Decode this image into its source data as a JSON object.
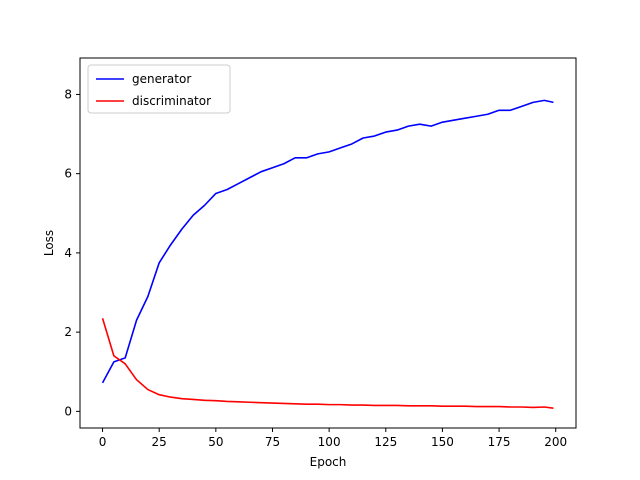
{
  "chart_data": {
    "type": "line",
    "title": "",
    "xlabel": "Epoch",
    "ylabel": "Loss",
    "xlim": [
      -9.95,
      208.95
    ],
    "ylim": [
      -0.42,
      8.92
    ],
    "xticks": [
      0,
      25,
      50,
      75,
      100,
      125,
      150,
      175,
      200
    ],
    "yticks": [
      0,
      2,
      4,
      6,
      8
    ],
    "grid": false,
    "legend_position": "upper-left",
    "series": [
      {
        "name": "generator",
        "color": "#0000ff",
        "x": [
          0,
          5,
          10,
          15,
          20,
          25,
          30,
          35,
          40,
          45,
          50,
          55,
          60,
          65,
          70,
          75,
          80,
          85,
          90,
          95,
          100,
          105,
          110,
          115,
          120,
          125,
          130,
          135,
          140,
          145,
          150,
          155,
          160,
          165,
          170,
          175,
          180,
          185,
          190,
          195,
          199
        ],
        "y": [
          0.72,
          1.25,
          1.35,
          2.3,
          2.9,
          3.75,
          4.2,
          4.6,
          4.95,
          5.2,
          5.5,
          5.6,
          5.75,
          5.9,
          6.05,
          6.15,
          6.25,
          6.4,
          6.4,
          6.5,
          6.55,
          6.65,
          6.75,
          6.9,
          6.95,
          7.05,
          7.1,
          7.2,
          7.25,
          7.2,
          7.3,
          7.35,
          7.4,
          7.45,
          7.5,
          7.6,
          7.6,
          7.7,
          7.8,
          7.85,
          7.8
        ]
      },
      {
        "name": "discriminator",
        "color": "#ff0000",
        "x": [
          0,
          5,
          10,
          15,
          20,
          25,
          30,
          35,
          40,
          45,
          50,
          55,
          60,
          65,
          70,
          75,
          80,
          85,
          90,
          95,
          100,
          105,
          110,
          115,
          120,
          125,
          130,
          135,
          140,
          145,
          150,
          155,
          160,
          165,
          170,
          175,
          180,
          185,
          190,
          195,
          199
        ],
        "y": [
          2.35,
          1.4,
          1.2,
          0.8,
          0.55,
          0.42,
          0.36,
          0.32,
          0.3,
          0.28,
          0.27,
          0.25,
          0.24,
          0.23,
          0.22,
          0.21,
          0.2,
          0.19,
          0.18,
          0.18,
          0.17,
          0.17,
          0.16,
          0.16,
          0.15,
          0.15,
          0.15,
          0.14,
          0.14,
          0.14,
          0.13,
          0.13,
          0.13,
          0.12,
          0.12,
          0.12,
          0.11,
          0.11,
          0.1,
          0.11,
          0.08
        ]
      }
    ]
  }
}
